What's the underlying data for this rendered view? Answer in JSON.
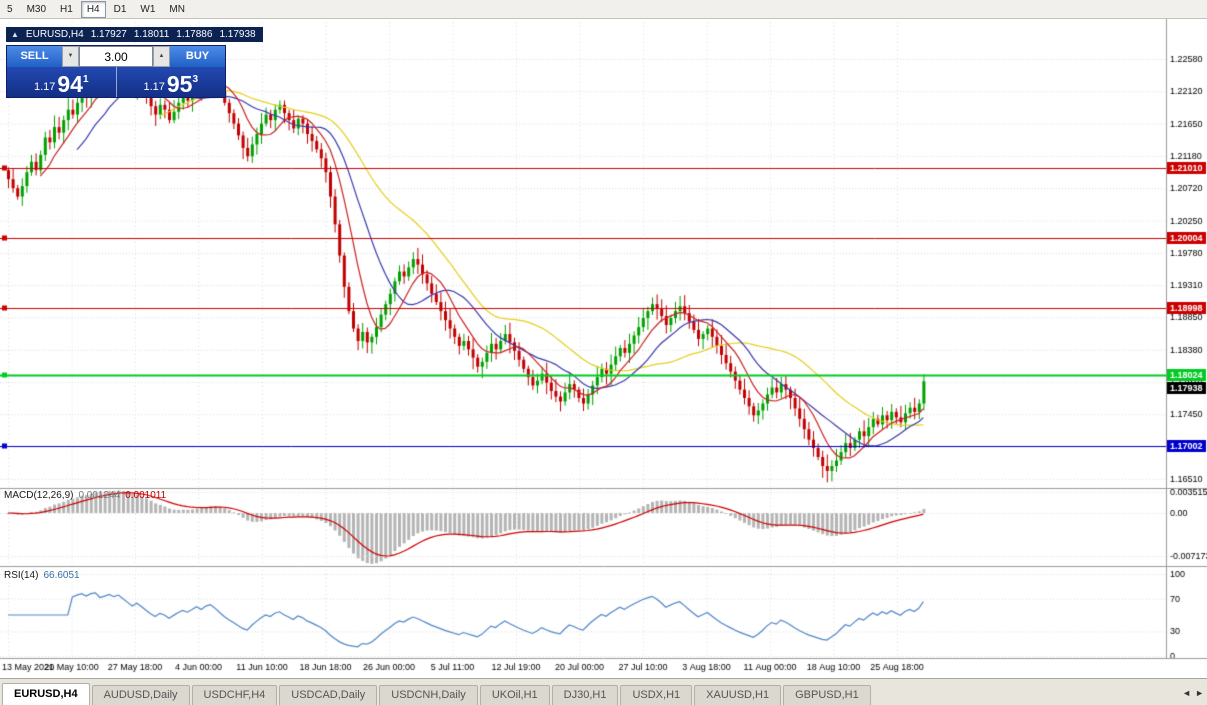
{
  "toolbar": {
    "timeframes": [
      "5",
      "M30",
      "H1",
      "H4",
      "D1",
      "W1",
      "MN"
    ],
    "active": "H4"
  },
  "chart_header": {
    "direction_icon": "▲",
    "symbol": "EURUSD,H4",
    "open": "1.17927",
    "high": "1.18011",
    "low": "1.17886",
    "close": "1.17938"
  },
  "trade_panel": {
    "sell_label": "SELL",
    "buy_label": "BUY",
    "volume": "3.00",
    "down_icon": "▼",
    "up_icon": "▲",
    "sell_price": {
      "base": "1.17",
      "big": "94",
      "sup": "1"
    },
    "buy_price": {
      "base": "1.17",
      "big": "95",
      "sup": "3"
    }
  },
  "tabs": {
    "items": [
      "EURUSD,H4",
      "AUDUSD,Daily",
      "USDCHF,H4",
      "USDCAD,Daily",
      "USDCNH,Daily",
      "UKOil,H1",
      "DJ30,H1",
      "USDX,H1",
      "XAUUSD,H1",
      "GBPUSD,H1"
    ],
    "active_index": 0,
    "scroll_left_icon": "◄",
    "scroll_right_icon": "►"
  },
  "chart_data": {
    "type": "candlestick",
    "symbol": "EURUSD",
    "timeframe": "H4",
    "price_axis": {
      "top": 1.2258,
      "step": 0.00465,
      "labels": [
        "1.22580",
        "1.22120",
        "1.21650",
        "1.21180",
        "1.20720",
        "1.20250",
        "1.19780",
        "1.19310",
        "1.18850",
        "1.18380",
        "1.17910",
        "1.17450",
        "1.16980",
        "1.16510"
      ]
    },
    "time_axis_labels": [
      "13 May 2021",
      "20 May 10:00",
      "27 May 18:00",
      "4 Jun 00:00",
      "11 Jun 10:00",
      "18 Jun 18:00",
      "26 Jun 00:00",
      "5 Jul 11:00",
      "12 Jul 19:00",
      "20 Jul 00:00",
      "27 Jul 10:00",
      "3 Aug 18:00",
      "11 Aug 00:00",
      "18 Aug 10:00",
      "25 Aug 18:00"
    ],
    "hlines": [
      {
        "price": 1.2101,
        "label": "1.21010",
        "color": "#cc0000",
        "lw": 1
      },
      {
        "price": 1.20004,
        "label": "1.20004",
        "color": "#cc0000",
        "lw": 1
      },
      {
        "price": 1.18998,
        "label": "1.18998",
        "color": "#cc0000",
        "lw": 1
      },
      {
        "price": 1.18024,
        "label": "1.18024",
        "color": "#00cc22",
        "lw": 2
      },
      {
        "price": 1.17002,
        "label": "1.17002",
        "color": "#0000cc",
        "lw": 1
      }
    ],
    "current_price": {
      "value": 1.17938,
      "label": "1.17938",
      "color": "#000000"
    },
    "start_open": 1.2098,
    "closes": [
      1.2085,
      1.2072,
      1.206,
      1.2075,
      1.2095,
      1.211,
      1.2098,
      1.212,
      1.2145,
      1.2138,
      1.216,
      1.2152,
      1.217,
      1.2185,
      1.2178,
      1.2195,
      1.221,
      1.2202,
      1.2225,
      1.2233,
      1.2218,
      1.223,
      1.2245,
      1.2238,
      1.2252,
      1.224,
      1.2228,
      1.2215,
      1.2232,
      1.222,
      1.2205,
      1.219,
      1.2178,
      1.2192,
      1.2185,
      1.217,
      1.2182,
      1.2195,
      1.2205,
      1.2198,
      1.221,
      1.2225,
      1.2215,
      1.2232,
      1.224,
      1.2228,
      1.2212,
      1.2195,
      1.218,
      1.2165,
      1.2148,
      1.213,
      1.2118,
      1.2135,
      1.215,
      1.2165,
      1.2178,
      1.217,
      1.2185,
      1.2192,
      1.218,
      1.217,
      1.2158,
      1.2172,
      1.2165,
      1.215,
      1.214,
      1.2128,
      1.2115,
      1.2095,
      1.206,
      1.202,
      1.1975,
      1.193,
      1.1895,
      1.187,
      1.1852,
      1.1865,
      1.185,
      1.1858,
      1.1872,
      1.189,
      1.1905,
      1.192,
      1.1938,
      1.1952,
      1.1945,
      1.1958,
      1.197,
      1.1962,
      1.1948,
      1.1935,
      1.192,
      1.1908,
      1.1895,
      1.1882,
      1.187,
      1.1858,
      1.1845,
      1.1852,
      1.184,
      1.1828,
      1.1815,
      1.1822,
      1.1835,
      1.1848,
      1.184,
      1.1852,
      1.1862,
      1.185,
      1.1838,
      1.1825,
      1.1812,
      1.18,
      1.1788,
      1.1795,
      1.1805,
      1.1792,
      1.178,
      1.1772,
      1.1765,
      1.1778,
      1.179,
      1.1782,
      1.177,
      1.1762,
      1.1775,
      1.1788,
      1.18,
      1.1812,
      1.1805,
      1.1818,
      1.183,
      1.1842,
      1.1835,
      1.1848,
      1.186,
      1.1872,
      1.1885,
      1.1895,
      1.1905,
      1.1898,
      1.1888,
      1.1875,
      1.1885,
      1.1895,
      1.1902,
      1.1892,
      1.188,
      1.1868,
      1.1855,
      1.1862,
      1.187,
      1.1858,
      1.1845,
      1.1832,
      1.182,
      1.1808,
      1.1795,
      1.1782,
      1.177,
      1.1758,
      1.1745,
      1.1752,
      1.1762,
      1.1775,
      1.1785,
      1.1778,
      1.179,
      1.1782,
      1.177,
      1.1755,
      1.174,
      1.1725,
      1.171,
      1.1698,
      1.1685,
      1.1672,
      1.1665,
      1.1672,
      1.168,
      1.1692,
      1.1705,
      1.1698,
      1.171,
      1.1722,
      1.1715,
      1.1728,
      1.174,
      1.1732,
      1.1745,
      1.1738,
      1.175,
      1.1742,
      1.1735,
      1.1748,
      1.1756,
      1.175,
      1.1762,
      1.1794
    ],
    "up_color": "#00a000",
    "down_color": "#c00000",
    "ma_settings": [
      {
        "period": 8,
        "color": "#cc2222"
      },
      {
        "period": 16,
        "color": "#3a3aae"
      },
      {
        "period": 34,
        "color": "#e6cf1e"
      }
    ],
    "macd": {
      "label": "MACD(12,26,9)",
      "value_main": "0.001244",
      "value_signal": "0.001011",
      "fast": 12,
      "slow": 26,
      "signal": 9,
      "axis_labels": [
        {
          "value": 0.003515,
          "text": "0.003515"
        },
        {
          "value": 0,
          "text": "0.00"
        },
        {
          "value": -0.007173,
          "text": "-0.007173"
        }
      ],
      "hist_color": "#b4b4b4",
      "signal_color": "#cc0000"
    },
    "rsi": {
      "label": "RSI(14)",
      "value": "66.6051",
      "period": 14,
      "axis_labels": [
        {
          "value": 100,
          "text": "100"
        },
        {
          "value": 70,
          "text": "70"
        },
        {
          "value": 30,
          "text": "30"
        },
        {
          "value": 0,
          "text": "0"
        }
      ],
      "color": "#4f86c6"
    },
    "grid_color": "#dedede",
    "separator_color": "#9a9a9a"
  }
}
